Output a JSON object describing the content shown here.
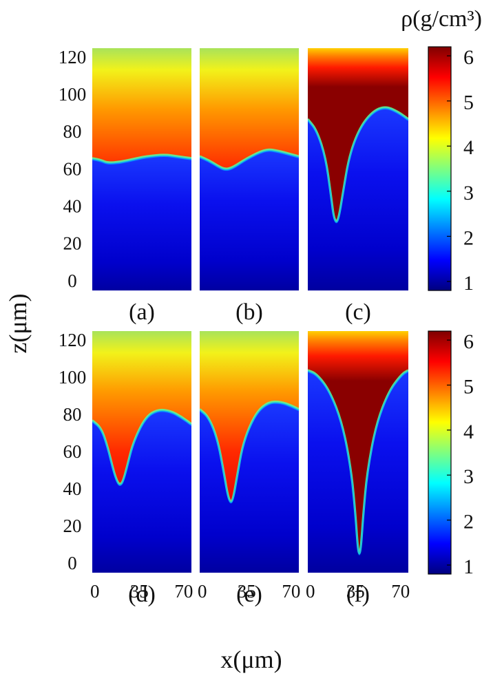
{
  "colors": {
    "jet": [
      "#00007f",
      "#0000ff",
      "#007fff",
      "#00ffff",
      "#7fff7f",
      "#ffff00",
      "#ff7f00",
      "#ff0000",
      "#7f0000"
    ]
  },
  "colorbar": {
    "label": "ρ(g/cm³)",
    "min": 0.8,
    "max": 6.2,
    "ticks": [
      "1",
      "2",
      "3",
      "4",
      "5",
      "6"
    ]
  },
  "axes": {
    "ylabel": "z(μm)",
    "xlabel": "x(μm)",
    "y_ticks": [
      "120",
      "100",
      "80",
      "60",
      "40",
      "20",
      "0"
    ],
    "x_ticks": [
      "0",
      "35",
      "70"
    ]
  },
  "chart_data": {
    "type": "heatmap",
    "quantity": "density",
    "units": "g/cm³",
    "x_range_um": [
      -2,
      76
    ],
    "z_range_um": [
      -6,
      124
    ],
    "panels": [
      {
        "label": "(a)",
        "interface_z": [
          [
            -2,
            65
          ],
          [
            5,
            64
          ],
          [
            10,
            62.5
          ],
          [
            20,
            63
          ],
          [
            30,
            64.5
          ],
          [
            40,
            66
          ],
          [
            55,
            67
          ],
          [
            65,
            66
          ],
          [
            76,
            65
          ]
        ],
        "surface_top": 124
      },
      {
        "label": "(b)",
        "interface_z": [
          [
            -2,
            66
          ],
          [
            5,
            64
          ],
          [
            12,
            61
          ],
          [
            18,
            59
          ],
          [
            24,
            60
          ],
          [
            35,
            65
          ],
          [
            50,
            70
          ],
          [
            60,
            69
          ],
          [
            76,
            66
          ]
        ],
        "surface_top": 124
      },
      {
        "label": "(c)",
        "interface_z": [
          [
            -2,
            86
          ],
          [
            5,
            80
          ],
          [
            12,
            65
          ],
          [
            16,
            45
          ],
          [
            18,
            34
          ],
          [
            20,
            30.5
          ],
          [
            22,
            33
          ],
          [
            25,
            45
          ],
          [
            30,
            66
          ],
          [
            38,
            81
          ],
          [
            48,
            90
          ],
          [
            58,
            93
          ],
          [
            68,
            90
          ],
          [
            76,
            86
          ]
        ],
        "surface_top": 118
      },
      {
        "label": "(d)",
        "interface_z": [
          [
            -2,
            76
          ],
          [
            5,
            72
          ],
          [
            10,
            62
          ],
          [
            15,
            48
          ],
          [
            18,
            42.5
          ],
          [
            20,
            41.5
          ],
          [
            22,
            43
          ],
          [
            25,
            50
          ],
          [
            30,
            64
          ],
          [
            40,
            78
          ],
          [
            50,
            82
          ],
          [
            60,
            81
          ],
          [
            68,
            78
          ],
          [
            76,
            74
          ]
        ],
        "surface_top": 124
      },
      {
        "label": "(e)",
        "interface_z": [
          [
            -2,
            82
          ],
          [
            5,
            78
          ],
          [
            12,
            66
          ],
          [
            17,
            48
          ],
          [
            20,
            36
          ],
          [
            22,
            32
          ],
          [
            24,
            33
          ],
          [
            27,
            44
          ],
          [
            32,
            64
          ],
          [
            42,
            80
          ],
          [
            52,
            86
          ],
          [
            62,
            86
          ],
          [
            70,
            84
          ],
          [
            76,
            82
          ]
        ],
        "surface_top": 124
      },
      {
        "label": "(f)",
        "interface_z": [
          [
            -2,
            103
          ],
          [
            5,
            101
          ],
          [
            15,
            92
          ],
          [
            25,
            74
          ],
          [
            32,
            48
          ],
          [
            35,
            25
          ],
          [
            36.5,
            10
          ],
          [
            37.5,
            4.5
          ],
          [
            38.5,
            4.5
          ],
          [
            39.5,
            10
          ],
          [
            41,
            25
          ],
          [
            44,
            48
          ],
          [
            51,
            74
          ],
          [
            61,
            92
          ],
          [
            71,
            101
          ],
          [
            76,
            103
          ]
        ],
        "surface_top": 112
      }
    ],
    "regions": {
      "upper": "high density (5–6 g/cm³)",
      "lower": "low density (~1 g/cm³)"
    }
  }
}
